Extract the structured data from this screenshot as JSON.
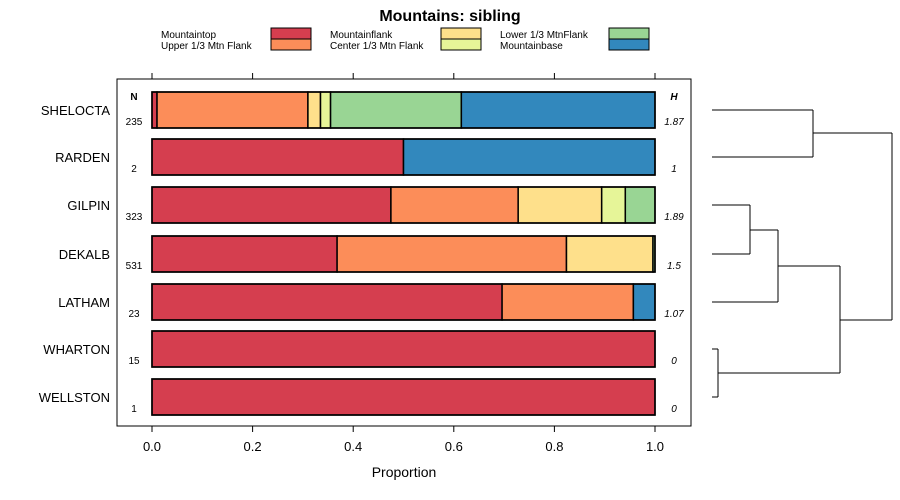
{
  "chart_data": {
    "type": "bar",
    "stacked": true,
    "orientation": "horizontal",
    "title": "Mountains: sibling",
    "xlabel": "Proportion",
    "ylabel": "",
    "xlim": [
      0,
      1
    ],
    "xticks": [
      "0.0",
      "0.2",
      "0.4",
      "0.6",
      "0.8",
      "1.0"
    ],
    "n_header": "N",
    "h_header": "H",
    "categories": [
      "SHELOCTA",
      "RARDEN",
      "GILPIN",
      "DEKALB",
      "LATHAM",
      "WHARTON",
      "WELLSTON"
    ],
    "n_values": [
      "235",
      "2",
      "323",
      "531",
      "23",
      "15",
      "1"
    ],
    "h_values": [
      "1.87",
      "1",
      "1.89",
      "1.5",
      "1.07",
      "0",
      "0"
    ],
    "series": [
      {
        "name": "Mountaintop",
        "color": "#D53E4F",
        "values": [
          0.01,
          0.5,
          0.475,
          0.368,
          0.696,
          1.0,
          1.0
        ]
      },
      {
        "name": "Upper 1/3 Mtn Flank",
        "color": "#FC8D59",
        "values": [
          0.3,
          0.0,
          0.253,
          0.456,
          0.261,
          0.0,
          0.0
        ]
      },
      {
        "name": "Mountainflank",
        "color": "#FEE08B",
        "values": [
          0.025,
          0.0,
          0.166,
          0.172,
          0.0,
          0.0,
          0.0
        ]
      },
      {
        "name": "Center 1/3 Mtn Flank",
        "color": "#E6F598",
        "values": [
          0.02,
          0.0,
          0.047,
          0.0,
          0.0,
          0.0,
          0.0
        ]
      },
      {
        "name": "Lower 1/3 MtnFlank",
        "color": "#99D594",
        "values": [
          0.26,
          0.0,
          0.059,
          0.004,
          0.0,
          0.0,
          0.0
        ]
      },
      {
        "name": "Mountainbase",
        "color": "#3288BD",
        "values": [
          0.385,
          0.5,
          0.0,
          0.0,
          0.043,
          0.0,
          0.0
        ]
      }
    ],
    "legend_position": "top"
  }
}
